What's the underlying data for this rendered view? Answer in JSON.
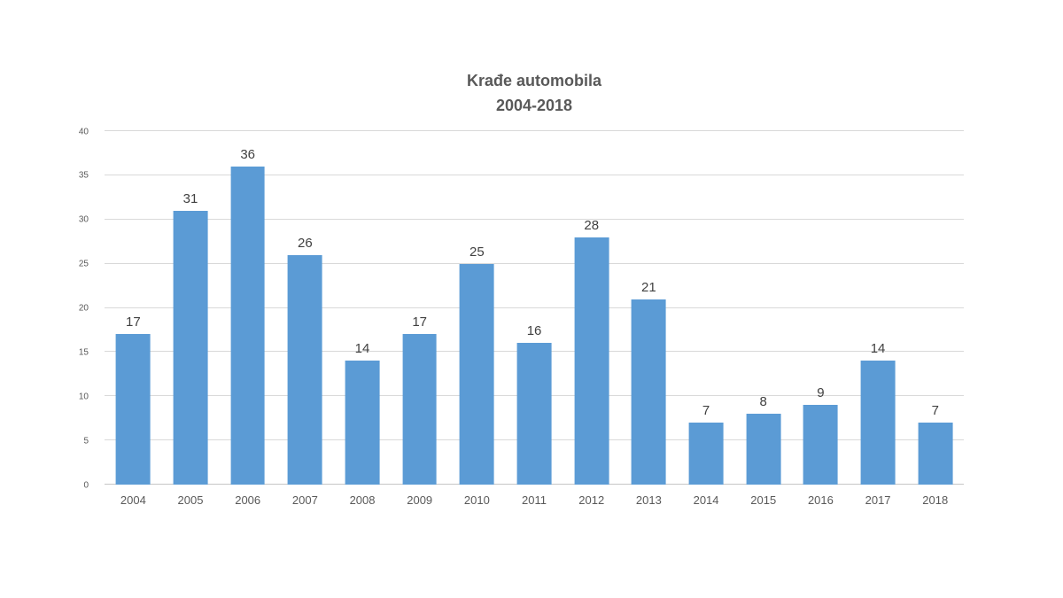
{
  "chart_data": {
    "type": "bar",
    "title": "Krađe automobila",
    "subtitle": "2004-2018",
    "categories": [
      "2004",
      "2005",
      "2006",
      "2007",
      "2008",
      "2009",
      "2010",
      "2011",
      "2012",
      "2013",
      "2014",
      "2015",
      "2016",
      "2017",
      "2018"
    ],
    "values": [
      17,
      31,
      36,
      26,
      14,
      17,
      25,
      16,
      28,
      21,
      7,
      8,
      9,
      14,
      7
    ],
    "ylim": [
      0,
      40
    ],
    "ytick_step": 5,
    "ytick_labels": [
      "0",
      "5",
      "10",
      "15",
      "20",
      "25",
      "30",
      "35",
      "40"
    ],
    "grid": true,
    "legend": false,
    "show_value_labels": true,
    "colors": {
      "bar": "#5b9bd5",
      "title": "#595959",
      "value_label": "#404040",
      "axis_label": "#595959",
      "gridline": "#d9d9d9",
      "background": "#ffffff"
    }
  }
}
